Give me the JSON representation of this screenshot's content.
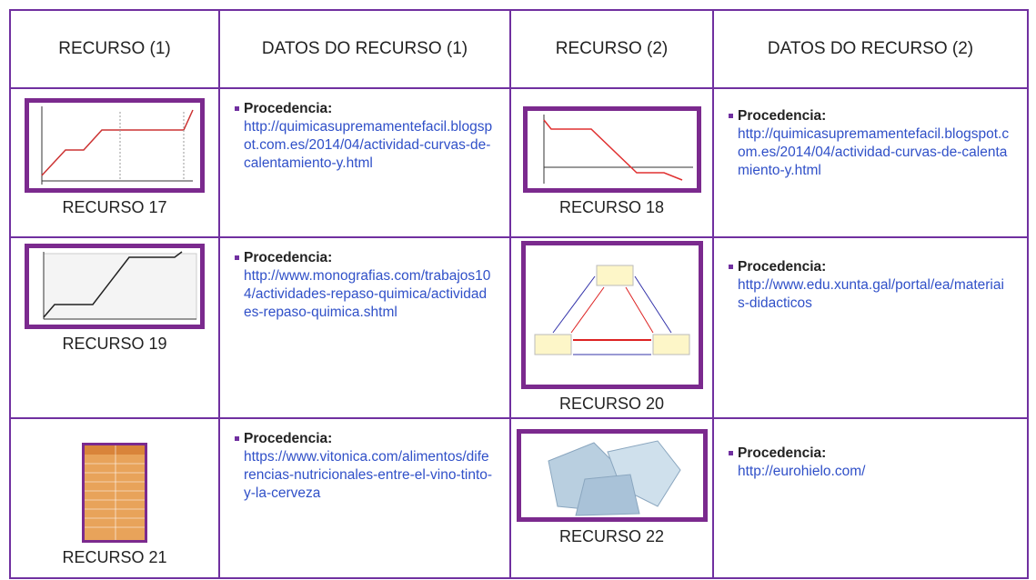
{
  "table": {
    "header": [
      "RECURSO (1)",
      "DATOS DO RECURSO (1)",
      "RECURSO (2)",
      "DATOS DO RECURSO (2)"
    ],
    "rows": [
      [
        {
          "caption": "RECURSO 17"
        },
        {
          "label": "Procedencia:",
          "url": "http://quimicasupremamentefacil.blogspot.com.es/2014/04/actividad-curvas-de-calentamiento-y.html"
        },
        {
          "caption": "RECURSO 18"
        },
        {
          "label": "Procedencia:",
          "url": "http://quimicasupremamentefacil.blogspot.com.es/2014/04/actividad-curvas-de-calentamiento-y.html"
        }
      ],
      [
        {
          "caption": "RECURSO 19"
        },
        {
          "label": "Procedencia:",
          "url": "http://www.monografias.com/trabajos104/actividades-repaso-quimica/actividades-repaso-quimica.shtml"
        },
        {
          "caption": "RECURSO 20"
        },
        {
          "label": "Procedencia:",
          "url": "http://www.edu.xunta.gal/portal/ea/materiais-didacticos"
        }
      ],
      [
        {
          "caption": "RECURSO 21"
        },
        {
          "label": "Procedencia:",
          "url": "https://www.vitonica.com/alimentos/diferencias-nutricionales-entre-el-vino-tinto-y-la-cerveza"
        },
        {
          "caption": "RECURSO 22"
        },
        {
          "label": "Procedencia:",
          "url": "http://eurohielo.com/"
        }
      ]
    ]
  }
}
